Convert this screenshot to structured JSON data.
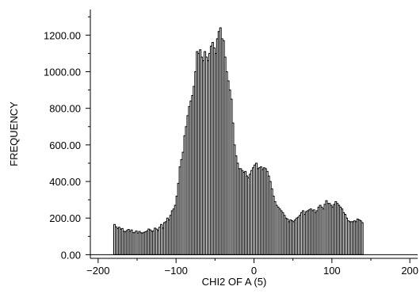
{
  "chart_data": {
    "type": "bar",
    "title": "",
    "xlabel": "CHI2 OF A (5)",
    "ylabel": "FREQUENCY",
    "xlim": [
      -210,
      210
    ],
    "ylim": [
      -20,
      1340
    ],
    "x_ticks": [
      -200,
      -100,
      0,
      100,
      200
    ],
    "x_tick_labels": [
      "−200",
      "−100",
      "0",
      "100",
      "200"
    ],
    "y_ticks": [
      0,
      200,
      400,
      600,
      800,
      1000,
      1200
    ],
    "y_tick_labels": [
      "0.00",
      "200.00",
      "400.00",
      "600.00",
      "800.00",
      "1000.00",
      "1200.00"
    ],
    "bin_start": -180,
    "bin_width": 2,
    "bar_fill": "#ffffff",
    "bar_stroke": "#000000",
    "grid": false,
    "values": [
      165,
      152,
      143,
      150,
      140,
      143,
      128,
      125,
      132,
      138,
      128,
      135,
      120,
      122,
      130,
      118,
      127,
      120,
      118,
      122,
      125,
      130,
      140,
      135,
      128,
      130,
      145,
      140,
      132,
      150,
      165,
      145,
      175,
      180,
      200,
      190,
      215,
      240,
      250,
      270,
      320,
      390,
      480,
      520,
      560,
      650,
      700,
      760,
      810,
      840,
      870,
      920,
      1000,
      1110,
      1100,
      1120,
      1080,
      1060,
      1110,
      1080,
      1060,
      1100,
      1140,
      1160,
      1130,
      1100,
      1180,
      1220,
      1240,
      1180,
      1170,
      1080,
      1000,
      950,
      900,
      850,
      720,
      600,
      540,
      500,
      470,
      470,
      460,
      450,
      455,
      430,
      420,
      440,
      460,
      475,
      490,
      500,
      470,
      475,
      480,
      465,
      475,
      470,
      455,
      430,
      400,
      360,
      320,
      290,
      270,
      260,
      250,
      240,
      230,
      215,
      200,
      195,
      180,
      190,
      185,
      180,
      190,
      200,
      205,
      215,
      230,
      240,
      220,
      235,
      240,
      245,
      250,
      240,
      245,
      230,
      240,
      260,
      270,
      260,
      250,
      275,
      295,
      280,
      280,
      270,
      260,
      275,
      290,
      280,
      270,
      260,
      250,
      230,
      220,
      200,
      185,
      180,
      180,
      180,
      185,
      180,
      195,
      190,
      185,
      175
    ]
  }
}
